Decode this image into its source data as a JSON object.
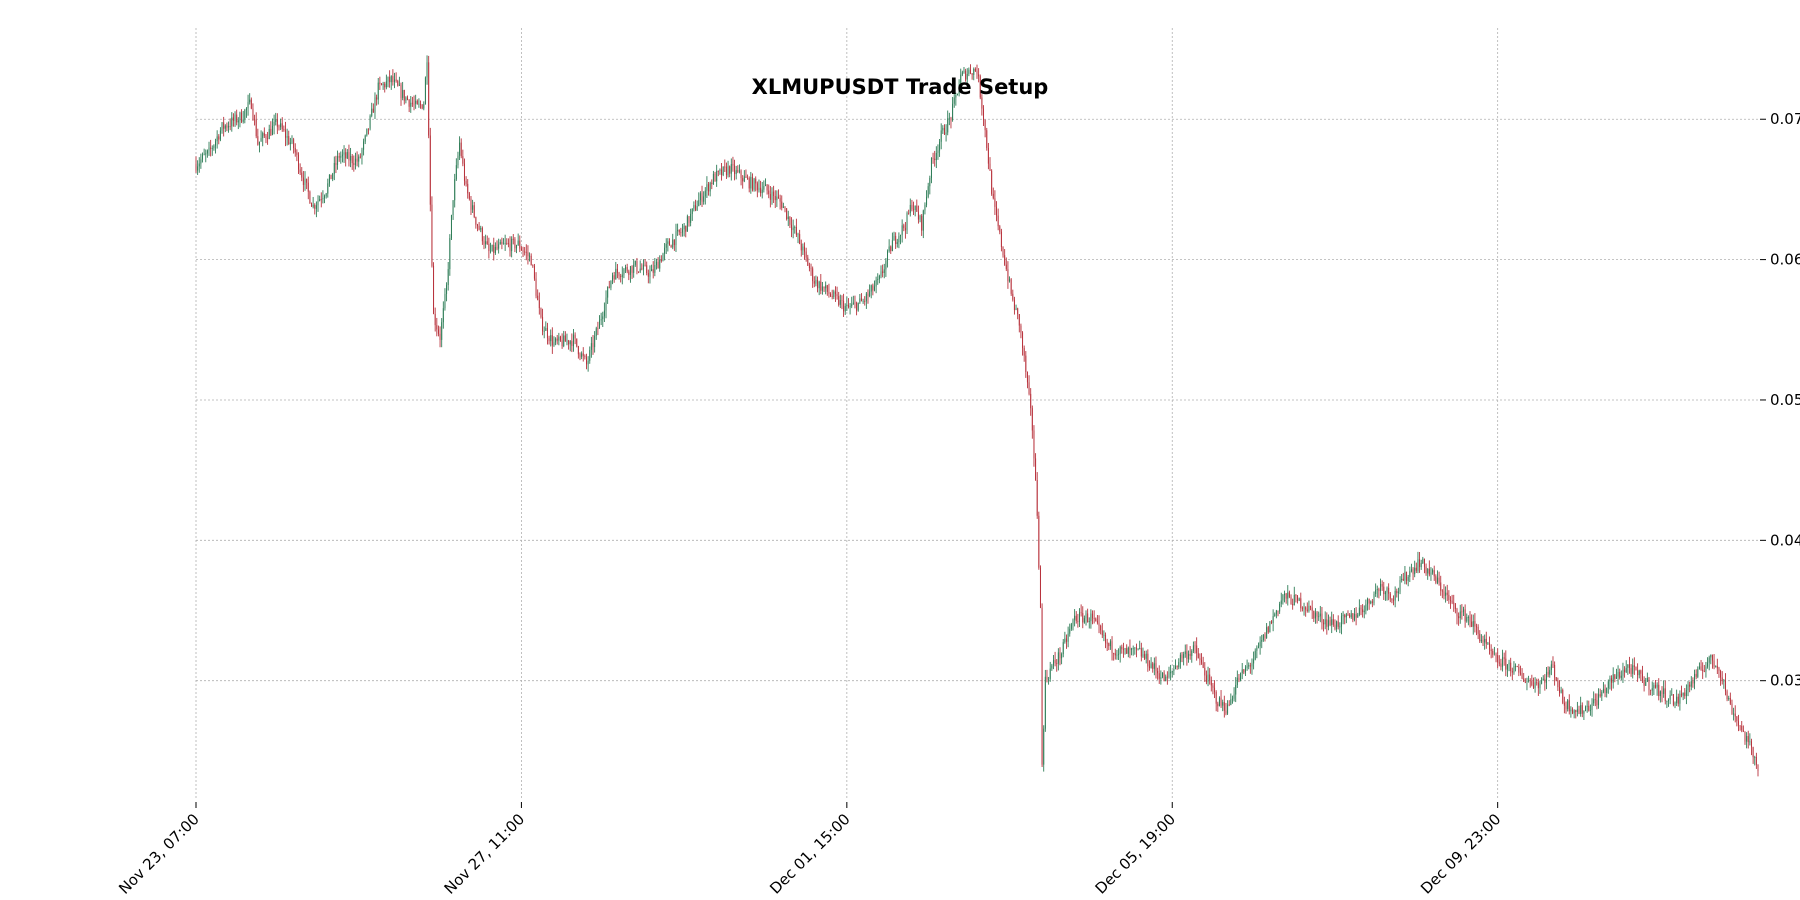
{
  "chart_data": {
    "type": "candlestick",
    "title": "XLMUPUSDT Trade Setup",
    "xlabel": "",
    "ylabel": "",
    "x_tick_labels": [
      "Nov 23, 07:00",
      "Nov 27, 11:00",
      "Dec 01, 15:00",
      "Dec 05, 19:00",
      "Dec 09, 23:00"
    ],
    "y_ticks": [
      0.03,
      0.04,
      0.05,
      0.06,
      0.07
    ],
    "y_tick_labels": [
      "0.03",
      "0.04",
      "0.05",
      "0.06",
      "0.07"
    ],
    "ylim": [
      0.0215,
      0.0765
    ],
    "x_range_hours": [
      0,
      480
    ],
    "x_ticks_hours": [
      0,
      100,
      200,
      300,
      400
    ],
    "grid": true,
    "y_axis_side": "right",
    "colors": {
      "up": "#2e7d57",
      "down": "#b8323c",
      "grid": "#b0b0b0"
    },
    "price_path": [
      [
        0,
        0.0668
      ],
      [
        4,
        0.0676
      ],
      [
        8,
        0.0694
      ],
      [
        14,
        0.0702
      ],
      [
        17,
        0.0712
      ],
      [
        19,
        0.0683
      ],
      [
        25,
        0.0697
      ],
      [
        30,
        0.068
      ],
      [
        33,
        0.0657
      ],
      [
        36,
        0.0638
      ],
      [
        40,
        0.065
      ],
      [
        44,
        0.0674
      ],
      [
        50,
        0.067
      ],
      [
        52,
        0.0685
      ],
      [
        56,
        0.0722
      ],
      [
        60,
        0.0728
      ],
      [
        64,
        0.0716
      ],
      [
        68,
        0.0708
      ],
      [
        70,
        0.0712
      ],
      [
        71,
        0.0745
      ],
      [
        72,
        0.064
      ],
      [
        73,
        0.056
      ],
      [
        75,
        0.0545
      ],
      [
        77,
        0.058
      ],
      [
        79,
        0.0645
      ],
      [
        81,
        0.0683
      ],
      [
        83,
        0.065
      ],
      [
        86,
        0.0628
      ],
      [
        90,
        0.0605
      ],
      [
        95,
        0.061
      ],
      [
        99,
        0.0611
      ],
      [
        103,
        0.06
      ],
      [
        106,
        0.0555
      ],
      [
        110,
        0.054
      ],
      [
        116,
        0.0543
      ],
      [
        120,
        0.0525
      ],
      [
        124,
        0.0555
      ],
      [
        128,
        0.059
      ],
      [
        135,
        0.0595
      ],
      [
        140,
        0.059
      ],
      [
        145,
        0.061
      ],
      [
        150,
        0.0622
      ],
      [
        154,
        0.064
      ],
      [
        159,
        0.0658
      ],
      [
        164,
        0.0665
      ],
      [
        170,
        0.0655
      ],
      [
        175,
        0.065
      ],
      [
        180,
        0.064
      ],
      [
        185,
        0.0615
      ],
      [
        190,
        0.0585
      ],
      [
        195,
        0.0575
      ],
      [
        200,
        0.0565
      ],
      [
        205,
        0.057
      ],
      [
        210,
        0.0585
      ],
      [
        214,
        0.0612
      ],
      [
        218,
        0.0625
      ],
      [
        220,
        0.064
      ],
      [
        223,
        0.0625
      ],
      [
        226,
        0.0668
      ],
      [
        229,
        0.0688
      ],
      [
        232,
        0.0702
      ],
      [
        235,
        0.073
      ],
      [
        238,
        0.0735
      ],
      [
        240,
        0.0735
      ],
      [
        242,
        0.0702
      ],
      [
        245,
        0.064
      ],
      [
        248,
        0.0605
      ],
      [
        251,
        0.057
      ],
      [
        253,
        0.0555
      ],
      [
        255,
        0.052
      ],
      [
        257,
        0.048
      ],
      [
        258.5,
        0.042
      ],
      [
        259.5,
        0.035
      ],
      [
        260,
        0.024
      ],
      [
        261,
        0.03
      ],
      [
        263,
        0.031
      ],
      [
        266,
        0.032
      ],
      [
        270,
        0.0345
      ],
      [
        275,
        0.0345
      ],
      [
        280,
        0.0325
      ],
      [
        285,
        0.032
      ],
      [
        290,
        0.032
      ],
      [
        294,
        0.031
      ],
      [
        298,
        0.03
      ],
      [
        303,
        0.0318
      ],
      [
        307,
        0.0322
      ],
      [
        311,
        0.03
      ],
      [
        314,
        0.0285
      ],
      [
        317,
        0.028
      ],
      [
        320,
        0.03
      ],
      [
        325,
        0.0315
      ],
      [
        330,
        0.034
      ],
      [
        334,
        0.036
      ],
      [
        340,
        0.0355
      ],
      [
        345,
        0.0345
      ],
      [
        350,
        0.034
      ],
      [
        355,
        0.0345
      ],
      [
        360,
        0.0355
      ],
      [
        364,
        0.0368
      ],
      [
        368,
        0.036
      ],
      [
        372,
        0.0375
      ],
      [
        376,
        0.0385
      ],
      [
        380,
        0.0375
      ],
      [
        383,
        0.0365
      ],
      [
        387,
        0.035
      ],
      [
        391,
        0.0345
      ],
      [
        395,
        0.033
      ],
      [
        399,
        0.0315
      ],
      [
        404,
        0.031
      ],
      [
        409,
        0.03
      ],
      [
        413,
        0.0298
      ],
      [
        417,
        0.031
      ],
      [
        420,
        0.0285
      ],
      [
        425,
        0.0278
      ],
      [
        430,
        0.0285
      ],
      [
        435,
        0.03
      ],
      [
        440,
        0.031
      ],
      [
        445,
        0.03
      ],
      [
        450,
        0.0292
      ],
      [
        455,
        0.0285
      ],
      [
        460,
        0.03
      ],
      [
        465,
        0.0315
      ],
      [
        468,
        0.031
      ],
      [
        471,
        0.0285
      ],
      [
        474,
        0.027
      ],
      [
        477,
        0.0255
      ],
      [
        480,
        0.024
      ]
    ]
  }
}
